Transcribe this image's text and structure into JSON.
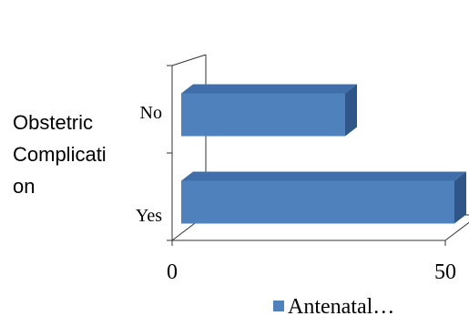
{
  "chart_data": {
    "type": "bar",
    "orientation": "horizontal",
    "three_d": true,
    "categories": [
      "Yes",
      "No"
    ],
    "series": [
      {
        "name": "Antenatal…",
        "values": [
          50,
          30
        ]
      }
    ],
    "ylabel_lines": [
      "Obstetric",
      "Complicati",
      "on"
    ],
    "xlabel": "",
    "title": "",
    "xlim": [
      0,
      50
    ],
    "x_ticks": [
      "0",
      "50"
    ],
    "legend_position": "bottom-right",
    "colors": {
      "bar_front": "#4f81bd",
      "bar_top": "#3f6ea8",
      "bar_side": "#2f5686",
      "axis": "#333333"
    }
  }
}
